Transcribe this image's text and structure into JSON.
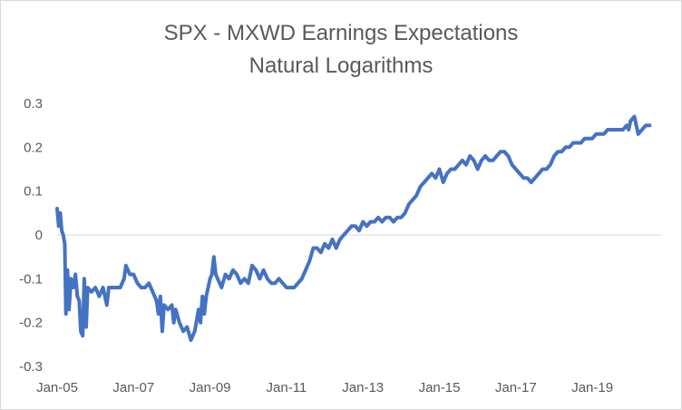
{
  "chart_data": {
    "type": "line",
    "title": "SPX - MXWD Earnings Expectations",
    "subtitle": "Natural Logarithms",
    "xlabel": "",
    "ylabel": "",
    "ylim": [
      -0.3,
      0.3
    ],
    "y_ticks": [
      0.3,
      0.2,
      0.1,
      0,
      -0.1,
      -0.2,
      -0.3
    ],
    "y_tick_labels": [
      "0.3",
      "0.2",
      "0.1",
      "0",
      "-0.1",
      "-0.2",
      "-0.3"
    ],
    "xlim": [
      2005.0,
      2020.8
    ],
    "x_ticks": [
      2005,
      2007,
      2009,
      2011,
      2013,
      2015,
      2017,
      2019
    ],
    "x_tick_labels": [
      "Jan-05",
      "Jan-07",
      "Jan-09",
      "Jan-11",
      "Jan-13",
      "Jan-15",
      "Jan-17",
      "Jan-19"
    ],
    "zero_line": true,
    "grid": false,
    "series": [
      {
        "name": "SPX - MXWD",
        "color": "#4472c4",
        "points": [
          [
            2005.0,
            0.06
          ],
          [
            2005.04,
            0.02
          ],
          [
            2005.08,
            0.05
          ],
          [
            2005.12,
            0.01
          ],
          [
            2005.16,
            0.0
          ],
          [
            2005.2,
            -0.02
          ],
          [
            2005.23,
            -0.18
          ],
          [
            2005.27,
            -0.08
          ],
          [
            2005.31,
            -0.17
          ],
          [
            2005.36,
            -0.1
          ],
          [
            2005.42,
            -0.12
          ],
          [
            2005.48,
            -0.09
          ],
          [
            2005.53,
            -0.14
          ],
          [
            2005.58,
            -0.15
          ],
          [
            2005.62,
            -0.22
          ],
          [
            2005.67,
            -0.23
          ],
          [
            2005.71,
            -0.1
          ],
          [
            2005.76,
            -0.21
          ],
          [
            2005.8,
            -0.12
          ],
          [
            2005.9,
            -0.13
          ],
          [
            2006.0,
            -0.12
          ],
          [
            2006.1,
            -0.14
          ],
          [
            2006.2,
            -0.12
          ],
          [
            2006.3,
            -0.16
          ],
          [
            2006.35,
            -0.12
          ],
          [
            2006.45,
            -0.12
          ],
          [
            2006.55,
            -0.12
          ],
          [
            2006.65,
            -0.12
          ],
          [
            2006.75,
            -0.1
          ],
          [
            2006.8,
            -0.07
          ],
          [
            2006.9,
            -0.09
          ],
          [
            2007.0,
            -0.09
          ],
          [
            2007.1,
            -0.11
          ],
          [
            2007.2,
            -0.12
          ],
          [
            2007.3,
            -0.12
          ],
          [
            2007.4,
            -0.11
          ],
          [
            2007.5,
            -0.13
          ],
          [
            2007.6,
            -0.15
          ],
          [
            2007.65,
            -0.18
          ],
          [
            2007.7,
            -0.14
          ],
          [
            2007.75,
            -0.22
          ],
          [
            2007.8,
            -0.16
          ],
          [
            2007.9,
            -0.17
          ],
          [
            2008.0,
            -0.16
          ],
          [
            2008.05,
            -0.2
          ],
          [
            2008.1,
            -0.17
          ],
          [
            2008.2,
            -0.2
          ],
          [
            2008.3,
            -0.22
          ],
          [
            2008.4,
            -0.21
          ],
          [
            2008.5,
            -0.24
          ],
          [
            2008.6,
            -0.22
          ],
          [
            2008.7,
            -0.17
          ],
          [
            2008.75,
            -0.2
          ],
          [
            2008.8,
            -0.14
          ],
          [
            2008.85,
            -0.18
          ],
          [
            2008.9,
            -0.14
          ],
          [
            2008.95,
            -0.12
          ],
          [
            2009.0,
            -0.1
          ],
          [
            2009.05,
            -0.09
          ],
          [
            2009.1,
            -0.05
          ],
          [
            2009.15,
            -0.09
          ],
          [
            2009.2,
            -0.1
          ],
          [
            2009.3,
            -0.12
          ],
          [
            2009.4,
            -0.09
          ],
          [
            2009.5,
            -0.1
          ],
          [
            2009.6,
            -0.08
          ],
          [
            2009.7,
            -0.09
          ],
          [
            2009.8,
            -0.11
          ],
          [
            2009.9,
            -0.1
          ],
          [
            2010.0,
            -0.11
          ],
          [
            2010.1,
            -0.07
          ],
          [
            2010.2,
            -0.08
          ],
          [
            2010.3,
            -0.1
          ],
          [
            2010.4,
            -0.08
          ],
          [
            2010.5,
            -0.1
          ],
          [
            2010.6,
            -0.11
          ],
          [
            2010.7,
            -0.11
          ],
          [
            2010.8,
            -0.1
          ],
          [
            2010.9,
            -0.11
          ],
          [
            2011.0,
            -0.12
          ],
          [
            2011.1,
            -0.12
          ],
          [
            2011.2,
            -0.12
          ],
          [
            2011.3,
            -0.11
          ],
          [
            2011.4,
            -0.1
          ],
          [
            2011.5,
            -0.08
          ],
          [
            2011.6,
            -0.06
          ],
          [
            2011.7,
            -0.03
          ],
          [
            2011.8,
            -0.03
          ],
          [
            2011.9,
            -0.04
          ],
          [
            2012.0,
            -0.02
          ],
          [
            2012.1,
            -0.03
          ],
          [
            2012.2,
            -0.01
          ],
          [
            2012.3,
            -0.03
          ],
          [
            2012.4,
            -0.01
          ],
          [
            2012.5,
            0.0
          ],
          [
            2012.6,
            0.01
          ],
          [
            2012.7,
            0.02
          ],
          [
            2012.8,
            0.02
          ],
          [
            2012.9,
            0.01
          ],
          [
            2013.0,
            0.03
          ],
          [
            2013.1,
            0.02
          ],
          [
            2013.2,
            0.03
          ],
          [
            2013.3,
            0.03
          ],
          [
            2013.4,
            0.04
          ],
          [
            2013.5,
            0.03
          ],
          [
            2013.6,
            0.04
          ],
          [
            2013.7,
            0.04
          ],
          [
            2013.8,
            0.03
          ],
          [
            2013.9,
            0.04
          ],
          [
            2014.0,
            0.04
          ],
          [
            2014.1,
            0.05
          ],
          [
            2014.2,
            0.07
          ],
          [
            2014.3,
            0.08
          ],
          [
            2014.4,
            0.09
          ],
          [
            2014.5,
            0.11
          ],
          [
            2014.6,
            0.12
          ],
          [
            2014.7,
            0.13
          ],
          [
            2014.8,
            0.14
          ],
          [
            2014.9,
            0.13
          ],
          [
            2015.0,
            0.15
          ],
          [
            2015.1,
            0.12
          ],
          [
            2015.2,
            0.14
          ],
          [
            2015.3,
            0.15
          ],
          [
            2015.4,
            0.15
          ],
          [
            2015.5,
            0.16
          ],
          [
            2015.6,
            0.17
          ],
          [
            2015.7,
            0.16
          ],
          [
            2015.8,
            0.18
          ],
          [
            2015.9,
            0.17
          ],
          [
            2016.0,
            0.15
          ],
          [
            2016.1,
            0.17
          ],
          [
            2016.2,
            0.18
          ],
          [
            2016.3,
            0.17
          ],
          [
            2016.4,
            0.17
          ],
          [
            2016.5,
            0.18
          ],
          [
            2016.6,
            0.19
          ],
          [
            2016.7,
            0.19
          ],
          [
            2016.8,
            0.18
          ],
          [
            2016.9,
            0.16
          ],
          [
            2017.0,
            0.15
          ],
          [
            2017.1,
            0.14
          ],
          [
            2017.2,
            0.13
          ],
          [
            2017.3,
            0.13
          ],
          [
            2017.4,
            0.12
          ],
          [
            2017.5,
            0.13
          ],
          [
            2017.6,
            0.14
          ],
          [
            2017.7,
            0.15
          ],
          [
            2017.8,
            0.15
          ],
          [
            2017.9,
            0.16
          ],
          [
            2018.0,
            0.18
          ],
          [
            2018.1,
            0.19
          ],
          [
            2018.2,
            0.19
          ],
          [
            2018.3,
            0.2
          ],
          [
            2018.4,
            0.2
          ],
          [
            2018.5,
            0.21
          ],
          [
            2018.6,
            0.21
          ],
          [
            2018.7,
            0.21
          ],
          [
            2018.8,
            0.22
          ],
          [
            2018.9,
            0.22
          ],
          [
            2019.0,
            0.22
          ],
          [
            2019.1,
            0.23
          ],
          [
            2019.2,
            0.23
          ],
          [
            2019.3,
            0.23
          ],
          [
            2019.4,
            0.24
          ],
          [
            2019.5,
            0.24
          ],
          [
            2019.6,
            0.24
          ],
          [
            2019.7,
            0.24
          ],
          [
            2019.8,
            0.24
          ],
          [
            2019.9,
            0.25
          ],
          [
            2019.95,
            0.24
          ],
          [
            2020.0,
            0.26
          ],
          [
            2020.1,
            0.27
          ],
          [
            2020.15,
            0.25
          ],
          [
            2020.2,
            0.23
          ],
          [
            2020.3,
            0.24
          ],
          [
            2020.4,
            0.25
          ],
          [
            2020.5,
            0.25
          ]
        ]
      }
    ]
  }
}
